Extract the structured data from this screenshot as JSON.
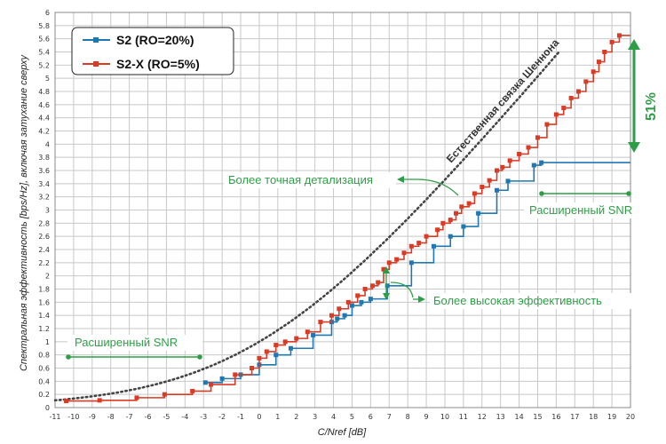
{
  "chart_data": {
    "type": "line",
    "xlabel": "C/Nref [dB]",
    "ylabel": "Спектральная эффективность [bps/Hz], включая затухание сверху",
    "xlim": [
      -11,
      20
    ],
    "ylim": [
      0,
      6
    ],
    "x_ticks": [
      -11,
      -10,
      -9,
      -8,
      -7,
      -6,
      -5,
      -4,
      -3,
      -2,
      -1,
      0,
      1,
      2,
      3,
      4,
      5,
      6,
      7,
      8,
      9,
      10,
      11,
      12,
      13,
      14,
      15,
      16,
      17,
      18,
      19,
      20
    ],
    "y_ticks": [
      0,
      0.2,
      0.4,
      0.6,
      0.8,
      1,
      1.2,
      1.4,
      1.6,
      1.8,
      2,
      2.2,
      2.4,
      2.6,
      2.8,
      3,
      3.2,
      3.4,
      3.6,
      3.8,
      4,
      4.2,
      4.4,
      4.6,
      4.8,
      5,
      5.2,
      5.4,
      5.6,
      5.8,
      6
    ],
    "y_tick_labels": [
      "0",
      "0.2",
      "0.4",
      "0.6",
      "0.8",
      "1",
      "1.2",
      "1.4",
      "1.6",
      "1.8",
      "2",
      "2.2",
      "2.4",
      "2.6",
      "2.8",
      "3",
      "3.2",
      "3.4",
      "3.6",
      "3.8",
      "4",
      "4.2",
      "4.4",
      "4.6",
      "4.8",
      "5",
      "5.2",
      "5.4",
      "5.6",
      "5.8",
      "6"
    ],
    "grid": true,
    "legend_position": "top-left",
    "series": [
      {
        "name": "S2 (RO=20%)",
        "color": "#1f77b4",
        "style": "step",
        "x": [
          -2.9,
          -2.0,
          -1.0,
          0.0,
          0.9,
          1.7,
          2.9,
          3.9,
          4.2,
          4.6,
          5.0,
          5.5,
          6.0,
          6.9,
          8.2,
          9.4,
          10.3,
          11.0,
          11.8,
          12.8,
          13.4,
          14.8,
          15.2
        ],
        "y": [
          0.38,
          0.44,
          0.5,
          0.65,
          0.8,
          0.9,
          1.1,
          1.3,
          1.35,
          1.4,
          1.55,
          1.6,
          1.65,
          1.85,
          2.2,
          2.45,
          2.6,
          2.75,
          2.95,
          3.3,
          3.44,
          3.68,
          3.72
        ],
        "end_x": 20
      },
      {
        "name": "S2-X (RO=5%)",
        "color": "#d93b25",
        "style": "step",
        "x": [
          -10.4,
          -8.6,
          -6.6,
          -5.1,
          -3.6,
          -2.6,
          -1.3,
          -0.4,
          0.0,
          0.4,
          0.9,
          1.4,
          2.0,
          2.6,
          3.3,
          3.9,
          4.3,
          4.8,
          5.3,
          5.7,
          6.1,
          6.4,
          6.7,
          7.0,
          7.4,
          7.8,
          8.2,
          8.6,
          9.0,
          9.6,
          9.9,
          10.3,
          10.6,
          10.9,
          11.3,
          11.6,
          12.0,
          12.4,
          12.8,
          13.1,
          13.5,
          14.0,
          14.5,
          15.0,
          15.5,
          16.0,
          16.4,
          16.8,
          17.2,
          17.6,
          18.0,
          18.3,
          18.6,
          19.0,
          19.4
        ],
        "y": [
          0.1,
          0.11,
          0.15,
          0.2,
          0.25,
          0.35,
          0.5,
          0.6,
          0.75,
          0.85,
          0.95,
          1.0,
          1.05,
          1.15,
          1.3,
          1.4,
          1.5,
          1.6,
          1.7,
          1.8,
          1.85,
          1.9,
          2.1,
          2.2,
          2.25,
          2.35,
          2.45,
          2.5,
          2.6,
          2.7,
          2.8,
          2.85,
          2.95,
          3.05,
          3.1,
          3.25,
          3.35,
          3.45,
          3.6,
          3.65,
          3.75,
          3.85,
          3.95,
          4.1,
          4.3,
          4.45,
          4.55,
          4.7,
          4.8,
          4.95,
          5.1,
          5.25,
          5.4,
          5.55,
          5.65
        ],
        "end_x": 20
      },
      {
        "name": "Естественная связка Шеннона",
        "color": "#444444",
        "style": "dotted",
        "formula": "y = log2(1 + 10^(x/10))"
      }
    ],
    "annotations": {
      "snr_left": "Расширенный SNR",
      "snr_right": "Расширенный SNR",
      "detail": "Более точная детализация",
      "efficiency": "Более высокая эффективность",
      "percent": "51%",
      "shannon": "Естественная связка Шеннона"
    }
  }
}
